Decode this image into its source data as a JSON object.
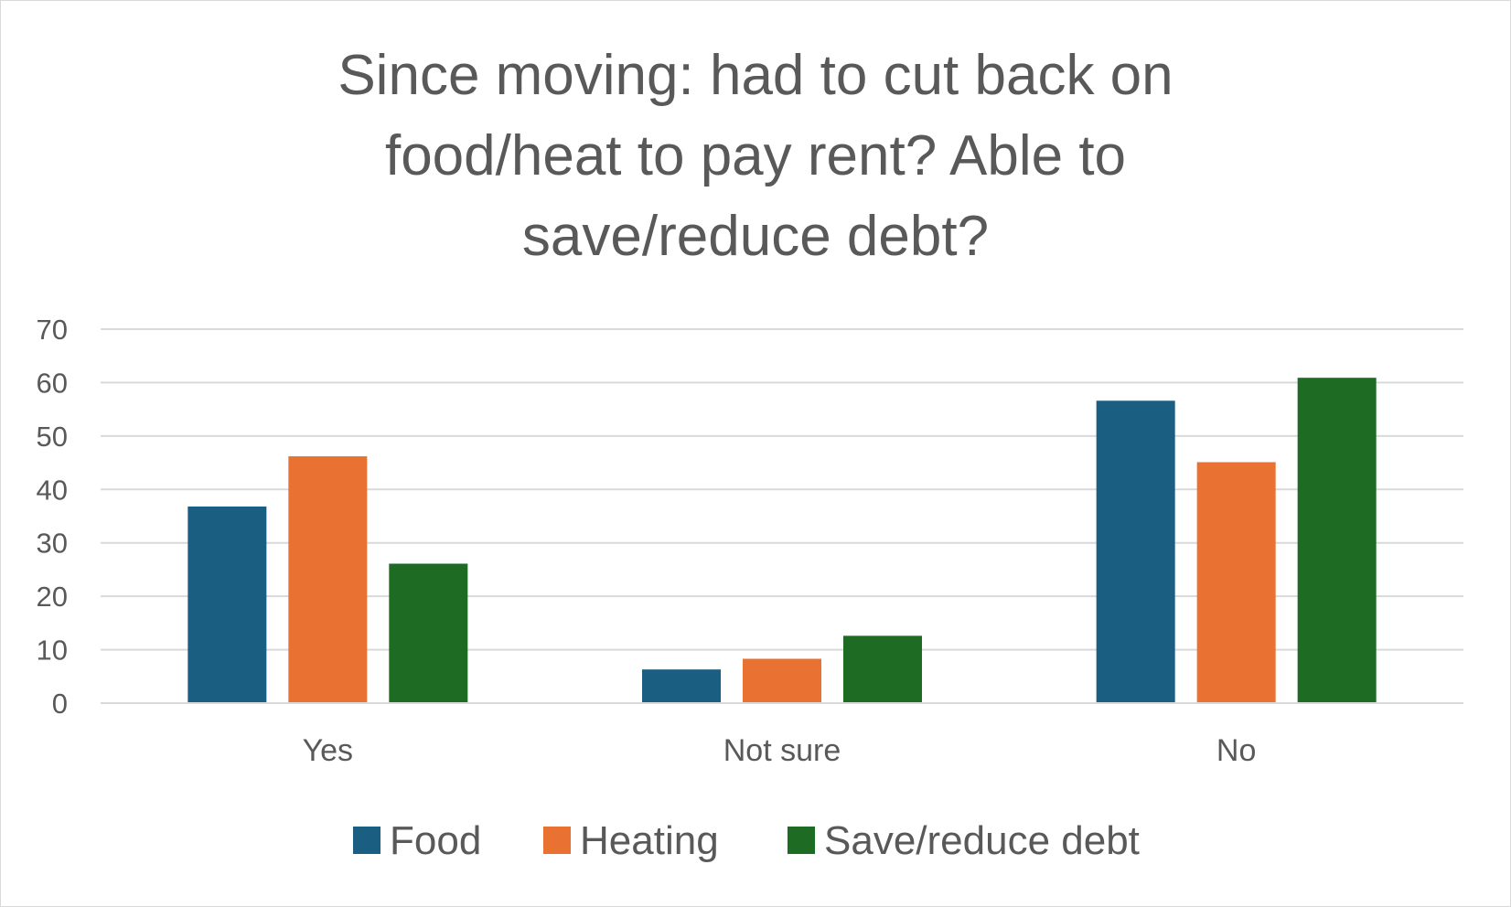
{
  "chart_data": {
    "type": "bar",
    "title_lines": [
      "Since moving: had to cut back on",
      "food/heat to pay rent? Able to",
      "save/reduce debt?"
    ],
    "categories": [
      "Yes",
      "Not sure",
      "No"
    ],
    "series": [
      {
        "name": "Food",
        "color": "#1a5e82",
        "values": [
          36.8,
          6.3,
          56.6
        ]
      },
      {
        "name": "Heating",
        "color": "#e97132",
        "values": [
          46.2,
          8.3,
          45.1
        ]
      },
      {
        "name": "Save/reduce debt",
        "color": "#1e6b24",
        "values": [
          26.1,
          12.6,
          60.9
        ]
      }
    ],
    "ylim": [
      0,
      70
    ],
    "yticks": [
      "0",
      "10",
      "20",
      "30",
      "40",
      "50",
      "60",
      "70"
    ],
    "grid": true,
    "legend_position": "bottom"
  }
}
